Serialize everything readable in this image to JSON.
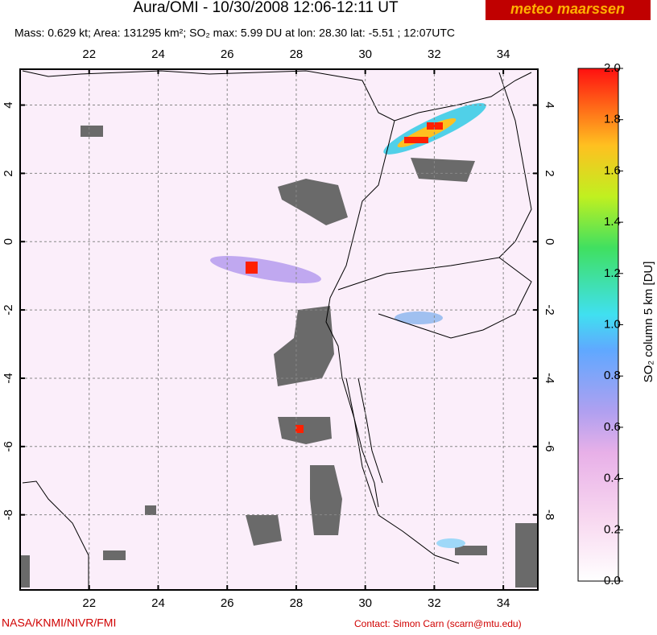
{
  "header": {
    "title": "Aura/OMI - 10/30/2008 12:06-12:11 UT",
    "subtitle": "Mass: 0.629 kt; Area: 131295 km²; SO₂ max: 5.99 DU at lon: 28.30 lat: -5.51 ; 12:07UTC",
    "logo": "meteo maarssen"
  },
  "map": {
    "xlim": [
      20,
      35
    ],
    "ylim": [
      -10.2,
      5.05
    ],
    "xticks": [
      22,
      24,
      26,
      28,
      30,
      32,
      34
    ],
    "yticks": [
      -8,
      -6,
      -4,
      -2,
      0,
      2,
      4
    ],
    "grid": true
  },
  "colorbar": {
    "label": "SO₂ column 5 km [DU]",
    "lim": [
      0,
      2
    ],
    "ticks": [
      {
        "value": 0,
        "label": "0.0"
      },
      0.2,
      0.4,
      0.6,
      0.8,
      {
        "value": 1,
        "label": "1.0"
      },
      1.2,
      1.4,
      1.6,
      1.8,
      {
        "value": 2,
        "label": "2.0"
      }
    ]
  },
  "footer": {
    "credit": "NASA/KNMI/NIVR/FMI",
    "contact": "Contact: Simon Carn (scarn@mtu.edu)"
  }
}
